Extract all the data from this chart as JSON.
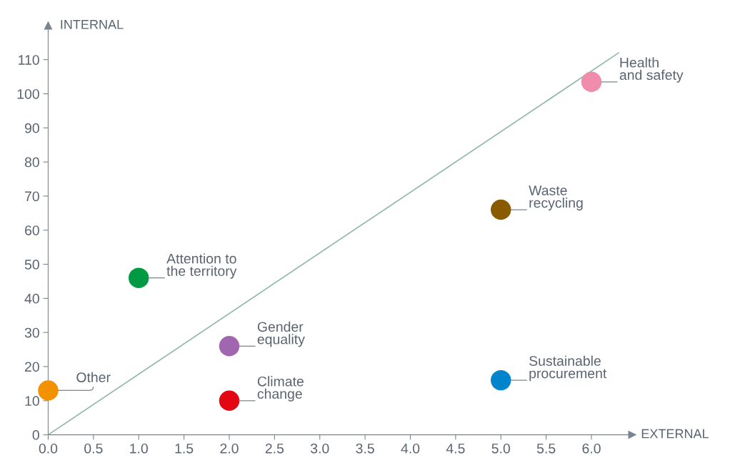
{
  "chart_data": {
    "type": "scatter",
    "xlabel": "EXTERNAL",
    "ylabel": "INTERNAL",
    "xlim": [
      0,
      6.45
    ],
    "ylim": [
      0,
      120
    ],
    "xticks": [
      {
        "value": 0,
        "label": "0.0"
      },
      0.5,
      {
        "value": 1,
        "label": "1.0"
      },
      1.5,
      {
        "value": 2,
        "label": "2.0"
      },
      2.5,
      {
        "value": 3,
        "label": "3.0"
      },
      3.5,
      {
        "value": 4,
        "label": "4.0"
      },
      4.5,
      {
        "value": 5,
        "label": "5.0"
      },
      5.5,
      {
        "value": 6,
        "label": "6.0"
      }
    ],
    "yticks": [
      0,
      10,
      20,
      30,
      40,
      50,
      60,
      70,
      80,
      90,
      100,
      110
    ],
    "grid": false,
    "legend": false,
    "marker": "circle",
    "series": [
      {
        "type": "line",
        "marker": "none",
        "color": "#8fb8a8",
        "x": [
          0,
          6.3
        ],
        "values": [
          0,
          112
        ]
      },
      {
        "x": [
          0,
          1,
          2,
          2,
          5,
          5,
          6
        ],
        "values": [
          13,
          46,
          26,
          10,
          16,
          66,
          103.5
        ],
        "colors": [
          "#f39200",
          "#009a44",
          "#a066b0",
          "#e30613",
          "#0084cc",
          "#8a5a00",
          "#f08cac"
        ]
      }
    ],
    "annotations": [
      {
        "text": "Other",
        "x": 0,
        "y": 13
      },
      {
        "text": "Attention to\nthe territory",
        "x": 1,
        "y": 46
      },
      {
        "text": "Gender\nequality",
        "x": 2,
        "y": 26
      },
      {
        "text": "Climate\nchange",
        "x": 2,
        "y": 10
      },
      {
        "text": "Sustainable\nprocurement",
        "x": 5,
        "y": 16
      },
      {
        "text": "Waste\nrecycling",
        "x": 5,
        "y": 66
      },
      {
        "text": "Health\nand safety",
        "x": 6,
        "y": 103.5
      }
    ]
  }
}
